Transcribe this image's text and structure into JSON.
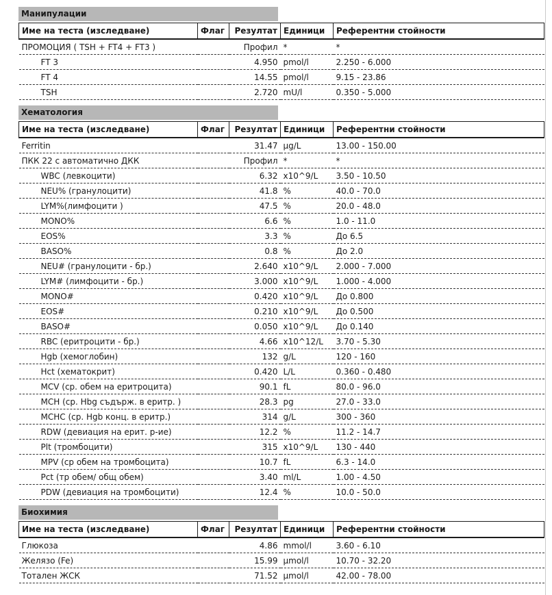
{
  "page": {
    "background": "#ffffff",
    "text_color": "#1a1a1a",
    "section_bar_color": "#b7b7b7",
    "dashed_border_color": "#333333",
    "right_edge_line_color": "#c9c9c9"
  },
  "columns": [
    "Име на теста (изследване)",
    "Флаг",
    "Резултат",
    "Единици",
    "Референтни стойности"
  ],
  "sections": [
    {
      "title": "Манипулации",
      "rows": [
        {
          "name": "ПРОМОЦИЯ ( TSH + FT4 + FT3 )",
          "indent": false,
          "flag": "",
          "result": "Профил",
          "units": "*",
          "reference": "*"
        },
        {
          "name": "FT 3",
          "indent": true,
          "flag": "",
          "result": "4.950",
          "units": "pmol/l",
          "reference": "2.250 - 6.000"
        },
        {
          "name": "FT 4",
          "indent": true,
          "flag": "",
          "result": "14.55",
          "units": "pmol/l",
          "reference": "9.15 - 23.86"
        },
        {
          "name": "TSH",
          "indent": true,
          "flag": "",
          "result": "2.720",
          "units": "mU/l",
          "reference": "0.350 - 5.000"
        }
      ]
    },
    {
      "title": "Хематология",
      "rows": [
        {
          "name": "Ferritin",
          "indent": false,
          "flag": "",
          "result": "31.47",
          "units": "µg/L",
          "reference": "13.00 - 150.00"
        },
        {
          "name": "ПКК 22 с автоматично ДКК",
          "indent": false,
          "flag": "",
          "result": "Профил",
          "units": "*",
          "reference": "*"
        },
        {
          "name": "WBC (левкоцити)",
          "indent": true,
          "flag": "",
          "result": "6.32",
          "units": "x10^9/L",
          "reference": "3.50 - 10.50"
        },
        {
          "name": "NEU% (гранулоцити)",
          "indent": true,
          "flag": "",
          "result": "41.8",
          "units": "%",
          "reference": "40.0 - 70.0"
        },
        {
          "name": "LYM%(лимфоцити )",
          "indent": true,
          "flag": "",
          "result": "47.5",
          "units": "%",
          "reference": "20.0 - 48.0"
        },
        {
          "name": "MONO%",
          "indent": true,
          "flag": "",
          "result": "6.6",
          "units": "%",
          "reference": "1.0 - 11.0"
        },
        {
          "name": "EOS%",
          "indent": true,
          "flag": "",
          "result": "3.3",
          "units": "%",
          "reference": "До 6.5"
        },
        {
          "name": "BASO%",
          "indent": true,
          "flag": "",
          "result": "0.8",
          "units": "%",
          "reference": "До 2.0"
        },
        {
          "name": "NEU# (гранулоцити - бр.)",
          "indent": true,
          "flag": "",
          "result": "2.640",
          "units": "x10^9/L",
          "reference": "2.000 - 7.000"
        },
        {
          "name": "LYM# (лимфоцити - бр.)",
          "indent": true,
          "flag": "",
          "result": "3.000",
          "units": "x10^9/L",
          "reference": "1.000 - 4.000"
        },
        {
          "name": "MONO#",
          "indent": true,
          "flag": "",
          "result": "0.420",
          "units": "x10^9/L",
          "reference": "До 0.800"
        },
        {
          "name": "EOS#",
          "indent": true,
          "flag": "",
          "result": "0.210",
          "units": "x10^9/L",
          "reference": "До 0.500"
        },
        {
          "name": "BASO#",
          "indent": true,
          "flag": "",
          "result": "0.050",
          "units": "x10^9/L",
          "reference": "До 0.140"
        },
        {
          "name": "RBC (еритроцити - бр.)",
          "indent": true,
          "flag": "",
          "result": "4.66",
          "units": "x10^12/L",
          "reference": "3.70 - 5.30"
        },
        {
          "name": "Hgb (хемоглобин)",
          "indent": true,
          "flag": "",
          "result": "132",
          "units": "g/L",
          "reference": "120 - 160"
        },
        {
          "name": "Hct (хематокрит)",
          "indent": true,
          "flag": "",
          "result": "0.420",
          "units": "L/L",
          "reference": "0.360 - 0.480"
        },
        {
          "name": "MCV (ср. обем на еритроцита)",
          "indent": true,
          "flag": "",
          "result": "90.1",
          "units": "fL",
          "reference": "80.0 - 96.0"
        },
        {
          "name": "MCH (ср. Hbg съдърж. в еритр. )",
          "indent": true,
          "flag": "",
          "result": "28.3",
          "units": "pg",
          "reference": "27.0 - 33.0"
        },
        {
          "name": "MCHC (ср. Hgb конц. в еритр.)",
          "indent": true,
          "flag": "",
          "result": "314",
          "units": "g/L",
          "reference": "300 - 360"
        },
        {
          "name": "RDW (девиация на ерит. р-ие)",
          "indent": true,
          "flag": "",
          "result": "12.2",
          "units": "%",
          "reference": "11.2 - 14.7"
        },
        {
          "name": "Plt (тромбоцити)",
          "indent": true,
          "flag": "",
          "result": "315",
          "units": "x10^9/L",
          "reference": "130 - 440"
        },
        {
          "name": "MPV (ср обем на тромбоцита)",
          "indent": true,
          "flag": "",
          "result": "10.7",
          "units": "fL",
          "reference": "6.3 - 14.0"
        },
        {
          "name": "Pct (тр обем/ общ обем)",
          "indent": true,
          "flag": "",
          "result": "3.40",
          "units": "ml/L",
          "reference": "1.00 - 4.50"
        },
        {
          "name": "PDW (девиация на тромбоцити)",
          "indent": true,
          "flag": "",
          "result": "12.4",
          "units": "%",
          "reference": "10.0 - 50.0"
        }
      ]
    },
    {
      "title": "Биохимия",
      "rows": [
        {
          "name": "Глюкоза",
          "indent": false,
          "flag": "",
          "result": "4.86",
          "units": "mmol/l",
          "reference": "3.60 - 6.10"
        },
        {
          "name": "Желязо (Fe)",
          "indent": false,
          "flag": "",
          "result": "15.99",
          "units": "µmol/l",
          "reference": "10.70 - 32.20"
        },
        {
          "name": "Тотален ЖСК",
          "indent": false,
          "flag": "",
          "result": "71.52",
          "units": "µmol/l",
          "reference": "42.00 - 78.00"
        }
      ]
    }
  ]
}
